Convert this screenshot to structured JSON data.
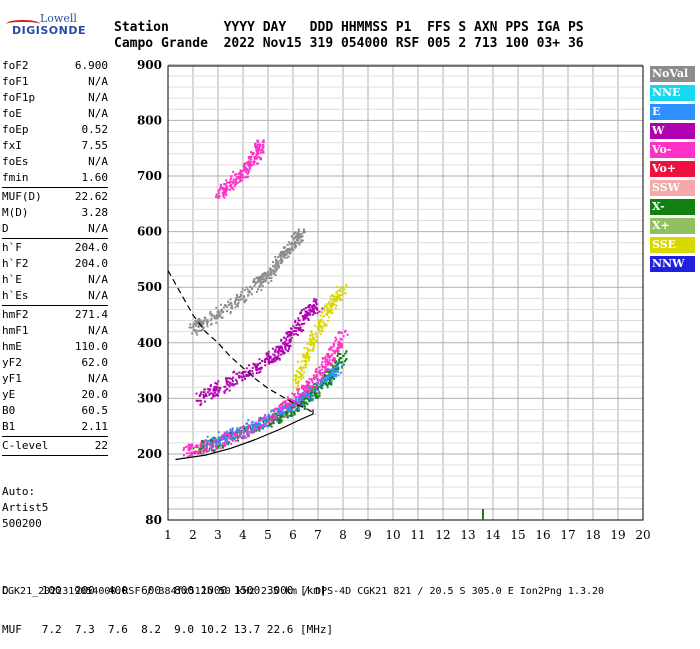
{
  "logo": {
    "line1": "Lowell",
    "line2": "DIGISONDE"
  },
  "header": {
    "labels": "Station       YYYY DAY   DDD HHMMSS P1  FFS S AXN PPS IGA PS",
    "values": "Campo Grande  2022 Nov15 319 054000 RSF 005 2 713 100 03+ 36"
  },
  "params": [
    {
      "name": "foF2",
      "value": "6.900"
    },
    {
      "name": "foF1",
      "value": "N/A"
    },
    {
      "name": "foF1p",
      "value": "N/A"
    },
    {
      "name": "foE",
      "value": "N/A"
    },
    {
      "name": "foEp",
      "value": "0.52"
    },
    {
      "name": "fxI",
      "value": "7.55"
    },
    {
      "name": "foEs",
      "value": "N/A"
    },
    {
      "name": "fmin",
      "value": "1.60"
    },
    {
      "sep": true
    },
    {
      "name": "MUF(D)",
      "value": "22.62"
    },
    {
      "name": "M(D)",
      "value": "3.28"
    },
    {
      "name": "D",
      "value": "N/A"
    },
    {
      "sep": true
    },
    {
      "name": "h`F",
      "value": "204.0"
    },
    {
      "name": "h`F2",
      "value": "204.0"
    },
    {
      "name": "h`E",
      "value": "N/A"
    },
    {
      "name": "h`Es",
      "value": "N/A"
    },
    {
      "sep": true
    },
    {
      "name": "hmF2",
      "value": "271.4"
    },
    {
      "name": "hmF1",
      "value": "N/A"
    },
    {
      "name": "hmE",
      "value": "110.0"
    },
    {
      "name": "yF2",
      "value": "62.0"
    },
    {
      "name": "yF1",
      "value": "N/A"
    },
    {
      "name": "yE",
      "value": "20.0"
    },
    {
      "name": "B0",
      "value": "60.5"
    },
    {
      "name": "B1",
      "value": "2.11"
    },
    {
      "sep": true
    },
    {
      "name": "C-level",
      "value": "22"
    },
    {
      "sep": true
    }
  ],
  "auto": {
    "line1": "Auto:",
    "line2": "Artist5",
    "line3": "500200"
  },
  "legend": [
    {
      "label": "NoVal",
      "color": "#8c8c8c"
    },
    {
      "label": "NNE",
      "color": "#18d8f0"
    },
    {
      "label": "E",
      "color": "#2e8fff"
    },
    {
      "label": "W",
      "color": "#b000b0"
    },
    {
      "label": "Vo-",
      "color": "#ff30c8"
    },
    {
      "label": "Vo+",
      "color": "#f01040"
    },
    {
      "label": "SSW",
      "color": "#f4a8a8"
    },
    {
      "label": "X-",
      "color": "#108010"
    },
    {
      "label": "X+",
      "color": "#90c060"
    },
    {
      "label": "SSE",
      "color": "#d8d800"
    },
    {
      "label": "NNW",
      "color": "#2020e0"
    }
  ],
  "footer": {
    "line1": "D     100  200  400  600  800 1000 1500 3000 [km]",
    "line2": "MUF   7.2  7.3  7.6  8.2  9.0 10.2 13.7 22.6 [MHz]",
    "line3": "CGK21_2022319054000.RSF / 384fx512h 50 kHz 2.5 km / DPS-4D CGK21 821 / 20.5 S 305.0 E Ion2Png 1.3.20"
  },
  "chart_data": {
    "type": "scatter",
    "xlim": [
      1,
      20
    ],
    "ylim": [
      80,
      900
    ],
    "xticks": [
      1,
      2,
      3,
      4,
      5,
      6,
      7,
      8,
      9,
      10,
      11,
      12,
      13,
      14,
      15,
      16,
      17,
      18,
      19,
      20
    ],
    "yticks": [
      80,
      200,
      300,
      400,
      500,
      600,
      700,
      800,
      900
    ],
    "grid": true,
    "series": [
      {
        "name": "X-",
        "color": "#108010",
        "trace": [
          [
            2.0,
            210
          ],
          [
            3.0,
            222
          ],
          [
            4.0,
            240
          ],
          [
            5.0,
            262
          ],
          [
            5.5,
            272
          ],
          [
            6.0,
            285
          ],
          [
            6.5,
            300
          ],
          [
            7.0,
            320
          ],
          [
            7.5,
            345
          ],
          [
            8.0,
            380
          ]
        ]
      },
      {
        "name": "Vo-",
        "color": "#ff30c8",
        "trace": [
          [
            1.6,
            205
          ],
          [
            2.5,
            215
          ],
          [
            3.5,
            232
          ],
          [
            4.5,
            252
          ],
          [
            5.5,
            280
          ],
          [
            6.0,
            298
          ],
          [
            6.5,
            318
          ],
          [
            7.0,
            345
          ],
          [
            7.5,
            375
          ],
          [
            8.0,
            420
          ]
        ]
      },
      {
        "name": "W",
        "color": "#b000b0",
        "trace": [
          [
            2.2,
            300
          ],
          [
            3.0,
            320
          ],
          [
            4.0,
            345
          ],
          [
            5.0,
            370
          ],
          [
            5.5,
            390
          ],
          [
            6.0,
            420
          ],
          [
            6.5,
            455
          ],
          [
            7.0,
            470
          ]
        ]
      },
      {
        "name": "NoVal",
        "color": "#8c8c8c",
        "trace": [
          [
            1.9,
            425
          ],
          [
            2.5,
            440
          ],
          [
            3.5,
            468
          ],
          [
            4.5,
            505
          ],
          [
            5.0,
            525
          ],
          [
            5.5,
            555
          ],
          [
            6.0,
            580
          ],
          [
            6.3,
            600
          ]
        ]
      },
      {
        "name": "SSE",
        "color": "#d8d800",
        "trace": [
          [
            6.0,
            320
          ],
          [
            6.5,
            380
          ],
          [
            7.0,
            430
          ],
          [
            7.5,
            470
          ],
          [
            8.0,
            500
          ]
        ]
      },
      {
        "name": "E",
        "color": "#2e8fff",
        "trace": [
          [
            2.5,
            220
          ],
          [
            4.0,
            245
          ],
          [
            5.5,
            275
          ],
          [
            7.0,
            320
          ],
          [
            7.8,
            360
          ]
        ]
      },
      {
        "name": "Vo- (high)",
        "color": "#ff30c8",
        "trace": [
          [
            3.0,
            670
          ],
          [
            3.5,
            690
          ],
          [
            4.0,
            710
          ],
          [
            4.5,
            740
          ],
          [
            4.7,
            760
          ]
        ]
      }
    ],
    "spike": {
      "x": 13.6,
      "y0": 80,
      "y1": 100,
      "color": "#108010"
    },
    "profile_solid": [
      [
        1.3,
        190
      ],
      [
        2.5,
        198
      ],
      [
        3.5,
        210
      ],
      [
        4.5,
        226
      ],
      [
        5.5,
        245
      ],
      [
        6.3,
        262
      ],
      [
        6.8,
        272
      ],
      [
        6.8,
        280
      ]
    ],
    "profile_dashed": [
      [
        1.0,
        530
      ],
      [
        1.5,
        490
      ],
      [
        2.0,
        450
      ],
      [
        2.5,
        420
      ],
      [
        3.0,
        400
      ],
      [
        3.5,
        375
      ],
      [
        4.0,
        355
      ],
      [
        4.5,
        335
      ],
      [
        5.0,
        318
      ],
      [
        5.5,
        305
      ],
      [
        6.0,
        292
      ],
      [
        6.6,
        280
      ],
      [
        6.9,
        272
      ]
    ]
  }
}
